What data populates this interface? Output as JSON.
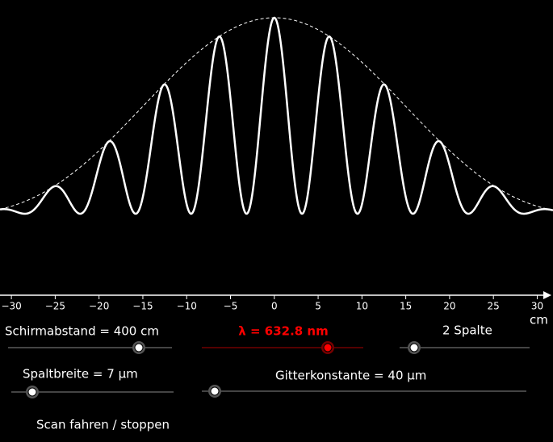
{
  "plot": {
    "xlim": [
      -31.3,
      31.8
    ],
    "xticks": [
      {
        "value": -30,
        "label": "−30"
      },
      {
        "value": -25,
        "label": "−25"
      },
      {
        "value": -20,
        "label": "−20"
      },
      {
        "value": -15,
        "label": "−15"
      },
      {
        "value": -10,
        "label": "−10"
      },
      {
        "value": -5,
        "label": "−5"
      },
      0,
      5,
      10,
      15,
      20,
      25,
      30
    ],
    "x_unit": "cm"
  },
  "controls": [
    {
      "label": "Schirmabstand = 400 cm",
      "value": 400
    },
    {
      "label": "λ = 632.8 nm",
      "value": 632.8
    },
    {
      "label": "2 Spalte",
      "value": 2
    },
    {
      "label": "Spaltbreite = 7 µm",
      "value": 7
    },
    {
      "label": "Gitterkonstante = 40 µm",
      "value": 40
    }
  ],
  "button": {
    "label": "Scan fahren / stoppen"
  }
}
